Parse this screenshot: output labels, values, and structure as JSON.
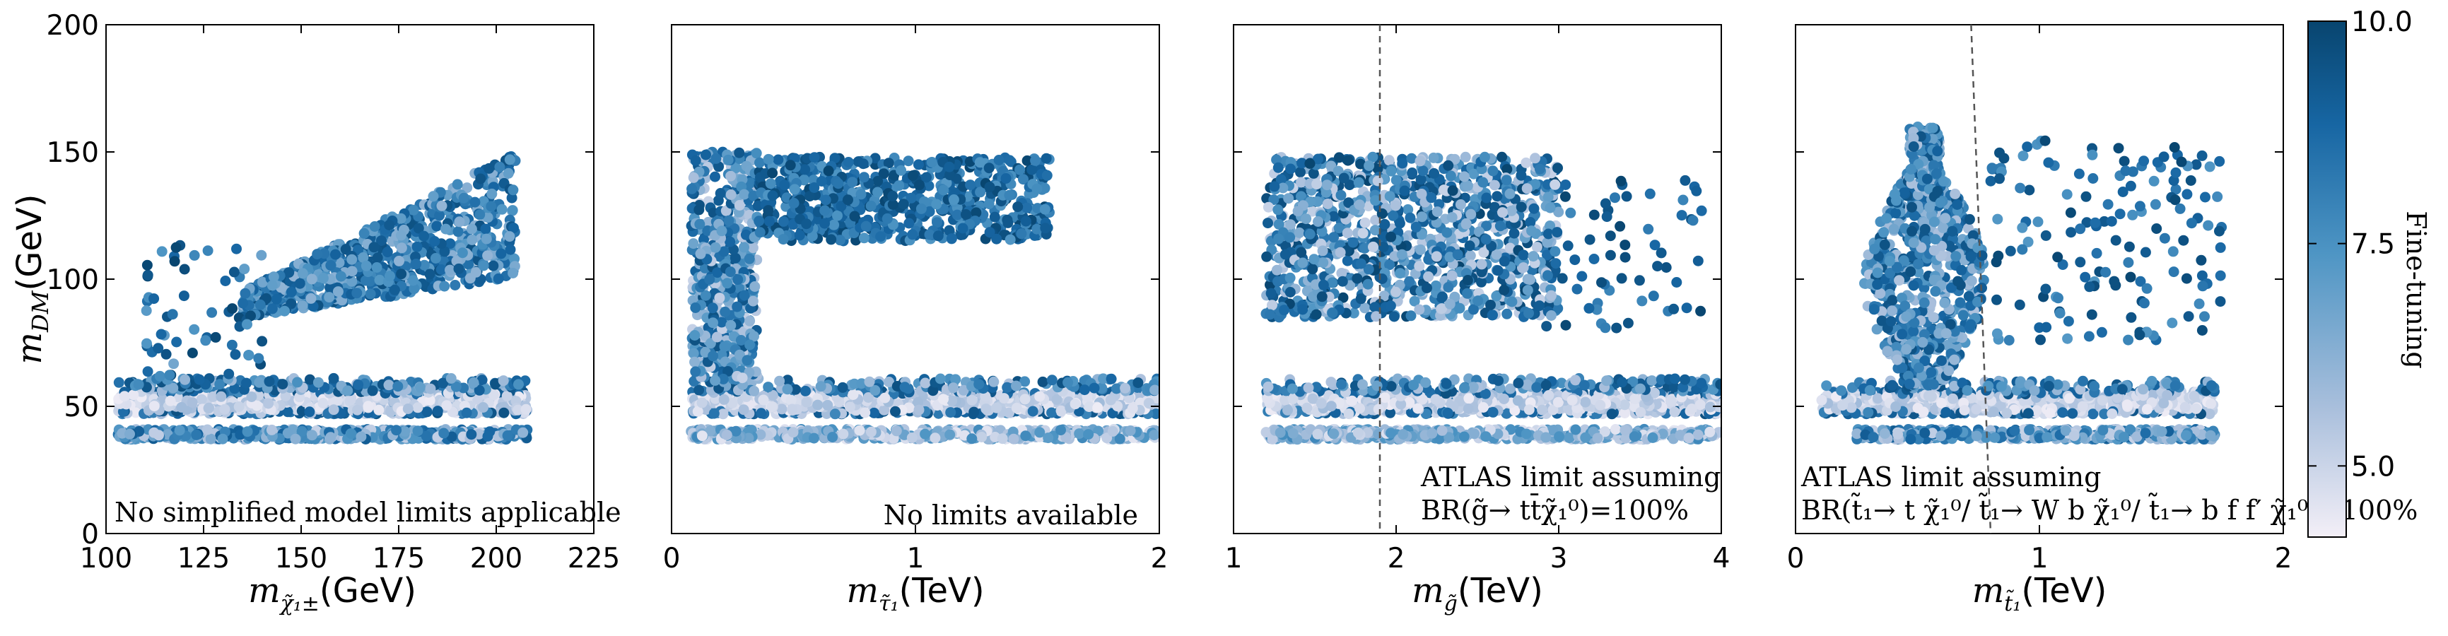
{
  "figure": {
    "ylabel_var": "m",
    "ylabel_sub": "DM",
    "ylabel_unit": "(GeV)"
  },
  "colorbar": {
    "label": "Fine-tuning",
    "min": 4.2,
    "max": 10.0,
    "ticks": [
      "10.0",
      "7.5",
      "5.0"
    ],
    "tick_values": [
      10.0,
      7.5,
      5.0
    ],
    "colors": [
      "#f3eff7",
      "#a9bfdc",
      "#4e95c4",
      "#1766a3",
      "#08456f"
    ]
  },
  "chart_data": [
    {
      "type": "scatter",
      "panel": "chargino",
      "xlabel_var": "m",
      "xlabel_sub": "χ̃₁±",
      "xlabel_unit": "(GeV)",
      "xlim": [
        100,
        225
      ],
      "ylim": [
        0,
        200
      ],
      "xticks": [
        "100",
        "125",
        "150",
        "175",
        "200",
        "225"
      ],
      "xtick_values": [
        100,
        125,
        150,
        175,
        200,
        225
      ],
      "yticks": [
        "0",
        "50",
        "100",
        "150",
        "200"
      ],
      "ytick_values": [
        0,
        50,
        100,
        150,
        200
      ],
      "annotations": [
        "No simplified model limits applicable"
      ],
      "clusters": [
        {
          "x": [
            103,
            208
          ],
          "y": [
            47,
            56
          ],
          "n": 900,
          "ft": [
            4.3,
            5.8
          ],
          "edge_ft": [
            7.5,
            9.5
          ]
        },
        {
          "x": [
            103,
            208
          ],
          "y": [
            56,
            61
          ],
          "n": 160,
          "ft": [
            5.5,
            9.5
          ]
        },
        {
          "x": [
            103,
            208
          ],
          "y": [
            37,
            41
          ],
          "n": 500,
          "ft": [
            5.0,
            9.0
          ]
        },
        {
          "x": [
            135,
            205
          ],
          "y": [
            85,
            150
          ],
          "n": 900,
          "ft": [
            6.0,
            9.5
          ],
          "shape": "wedge"
        },
        {
          "x": [
            110,
            140
          ],
          "y": [
            60,
            115
          ],
          "n": 60,
          "ft": [
            6.5,
            10.0
          ]
        }
      ]
    },
    {
      "type": "scatter",
      "panel": "stau",
      "xlabel_var": "m",
      "xlabel_sub": "τ̃₁",
      "xlabel_unit": "(TeV)",
      "xlim": [
        0,
        2
      ],
      "ylim": [
        0,
        200
      ],
      "xticks": [
        "0",
        "1",
        "2"
      ],
      "xtick_values": [
        0,
        1,
        2
      ],
      "annotations": [
        "No limits available"
      ],
      "clusters": [
        {
          "x": [
            0.08,
            2.0
          ],
          "y": [
            47,
            56
          ],
          "n": 900,
          "ft": [
            4.3,
            5.8
          ],
          "edge_ft": [
            7.5,
            9.5
          ]
        },
        {
          "x": [
            0.08,
            2.0
          ],
          "y": [
            56,
            61
          ],
          "n": 140,
          "ft": [
            5.5,
            9.5
          ]
        },
        {
          "x": [
            0.08,
            2.0
          ],
          "y": [
            37,
            41
          ],
          "n": 500,
          "ft": [
            4.5,
            7.5
          ]
        },
        {
          "x": [
            0.08,
            0.35
          ],
          "y": [
            60,
            150
          ],
          "n": 500,
          "ft": [
            5.0,
            9.5
          ]
        },
        {
          "x": [
            0.35,
            1.55
          ],
          "y": [
            115,
            148
          ],
          "n": 700,
          "ft": [
            7.0,
            10.0
          ]
        }
      ]
    },
    {
      "type": "scatter",
      "panel": "gluino",
      "xlabel_var": "m",
      "xlabel_sub": "g̃",
      "xlabel_unit": "(TeV)",
      "xlim": [
        1,
        4
      ],
      "ylim": [
        0,
        200
      ],
      "xticks": [
        "1",
        "2",
        "3",
        "4"
      ],
      "xtick_values": [
        1,
        2,
        3,
        4
      ],
      "limit_x": 1.9,
      "annotations": [
        "ATLAS limit assuming",
        "BR(g̃→ tt̄χ̃₁⁰)=100%"
      ],
      "clusters": [
        {
          "x": [
            1.2,
            4.0
          ],
          "y": [
            47,
            56
          ],
          "n": 900,
          "ft": [
            4.3,
            5.8
          ],
          "edge_ft": [
            7.5,
            9.5
          ]
        },
        {
          "x": [
            1.2,
            4.0
          ],
          "y": [
            56,
            61
          ],
          "n": 140,
          "ft": [
            5.5,
            9.5
          ]
        },
        {
          "x": [
            1.2,
            4.0
          ],
          "y": [
            37,
            41
          ],
          "n": 500,
          "ft": [
            4.5,
            7.5
          ]
        },
        {
          "x": [
            1.2,
            3.0
          ],
          "y": [
            85,
            148
          ],
          "n": 1100,
          "ft": [
            5.0,
            10.0
          ]
        },
        {
          "x": [
            2.9,
            3.9
          ],
          "y": [
            80,
            140
          ],
          "n": 60,
          "ft": [
            7.5,
            10.0
          ]
        }
      ]
    },
    {
      "type": "scatter",
      "panel": "stop",
      "xlabel_var": "m",
      "xlabel_sub": "t̃₁",
      "xlabel_unit": "(TeV)",
      "xlim": [
        0,
        2
      ],
      "ylim": [
        0,
        200
      ],
      "xticks": [
        "0",
        "1",
        "2"
      ],
      "xtick_values": [
        0,
        1,
        2
      ],
      "limit_x": [
        0.72,
        0.8
      ],
      "annotations": [
        "ATLAS limit assuming",
        "BR(t̃₁→ t χ̃₁⁰/ t̃₁→ W b χ̃₁⁰/ t̃₁→ b f f′ χ̃₁⁰)=100%"
      ],
      "clusters": [
        {
          "x": [
            0.1,
            1.72
          ],
          "y": [
            47,
            56
          ],
          "n": 800,
          "ft": [
            4.3,
            5.8
          ],
          "edge_ft": [
            7.5,
            9.5
          ]
        },
        {
          "x": [
            0.1,
            1.72
          ],
          "y": [
            56,
            60
          ],
          "n": 100,
          "ft": [
            5.5,
            9.5
          ]
        },
        {
          "x": [
            0.25,
            1.72
          ],
          "y": [
            37,
            41
          ],
          "n": 400,
          "ft": [
            5.0,
            9.0
          ]
        },
        {
          "x": [
            0.28,
            0.78
          ],
          "y": [
            58,
            160
          ],
          "n": 800,
          "ft": [
            5.5,
            9.5
          ],
          "shape": "blob"
        },
        {
          "x": [
            0.8,
            1.75
          ],
          "y": [
            75,
            155
          ],
          "n": 150,
          "ft": [
            7.0,
            10.0
          ]
        }
      ]
    }
  ]
}
